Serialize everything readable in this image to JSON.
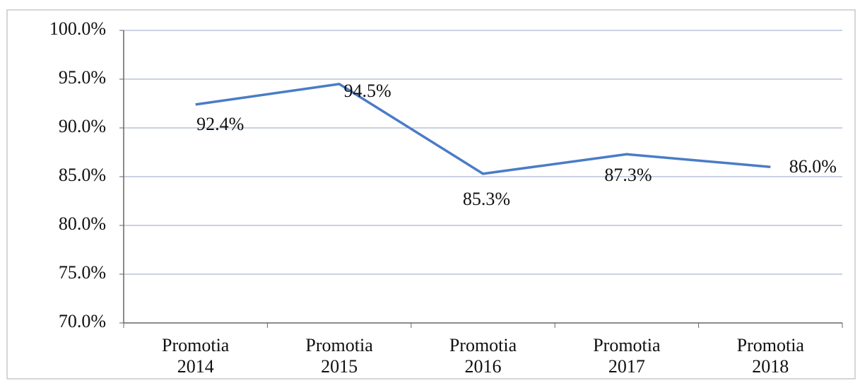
{
  "chart_data": {
    "type": "line",
    "categories": [
      "Promotia 2014",
      "Promotia 2015",
      "Promotia 2016",
      "Promotia 2017",
      "Promotia 2018"
    ],
    "series": [
      {
        "color": "#4a7cc7",
        "values": [
          92.4,
          94.5,
          85.3,
          87.3,
          86.0
        ],
        "value_labels": [
          "92.4%",
          "94.5%",
          "85.3%",
          "87.3%",
          "86.0%"
        ]
      }
    ],
    "ylim": [
      70,
      100
    ],
    "yticks": [
      {
        "value": 70,
        "label": "70.0%"
      },
      {
        "value": 75,
        "label": "75.0%"
      },
      {
        "value": 80,
        "label": "80.0%"
      },
      {
        "value": 85,
        "label": "85.0%"
      },
      {
        "value": 90,
        "label": "90.0%"
      },
      {
        "value": 95,
        "label": "95.0%"
      },
      {
        "value": 100,
        "label": "100.0%"
      }
    ],
    "grid": true
  }
}
